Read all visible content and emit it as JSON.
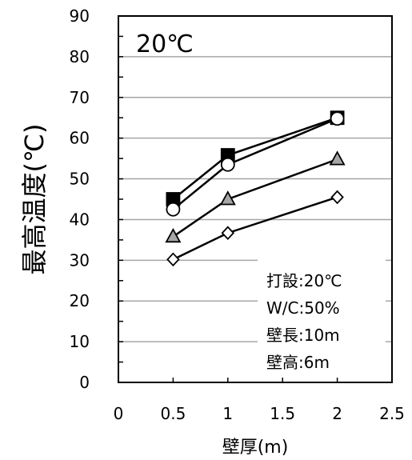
{
  "chart_data": {
    "type": "line",
    "panel_label": "20℃",
    "xlabel": "壁厚(m)",
    "ylabel": "最高温度(℃)",
    "x": [
      0.5,
      1,
      2
    ],
    "xlim": [
      0,
      2.5
    ],
    "ylim": [
      0,
      90
    ],
    "x_ticks": [
      "0",
      "0.5",
      "1",
      "1.5",
      "2",
      "2.5"
    ],
    "y_ticks": [
      "0",
      "10",
      "20",
      "30",
      "40",
      "50",
      "60",
      "70",
      "80",
      "90"
    ],
    "grid": "horizontal",
    "series": [
      {
        "marker": "square",
        "fill": "#000000",
        "values": [
          45,
          55.8,
          65
        ]
      },
      {
        "marker": "circle",
        "fill": "#ffffff",
        "values": [
          42.5,
          53.5,
          64.8
        ]
      },
      {
        "marker": "triangle",
        "fill": "#a6a6a6",
        "values": [
          35.8,
          45,
          54.8
        ]
      },
      {
        "marker": "diamond",
        "fill": "#ffffff",
        "values": [
          30.2,
          36.7,
          45.5
        ]
      }
    ],
    "annotations": [
      "打設:20℃",
      "W/C:50%",
      "壁長:10m",
      "壁高:6m"
    ]
  }
}
